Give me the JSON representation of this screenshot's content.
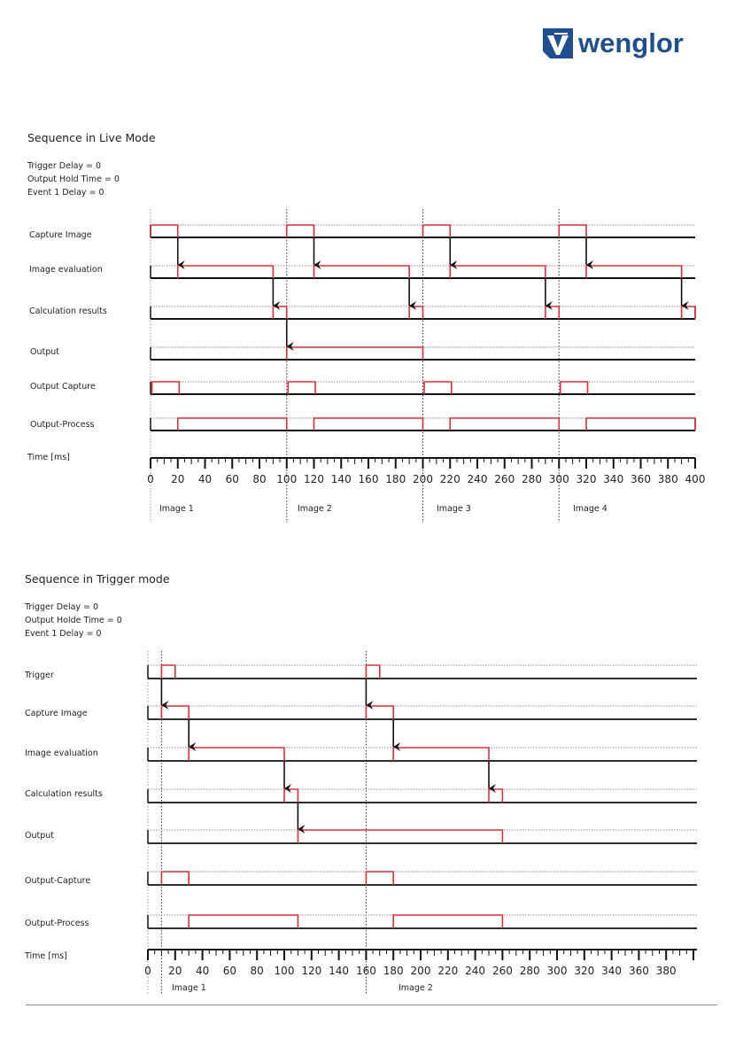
{
  "header": {
    "brand": "wenglor",
    "logo_icon": "wenglor-logo-icon",
    "brand_color": "#1f4f8f"
  },
  "colors": {
    "signal_high": "#d9303a",
    "signal_low": "#111111",
    "arrow": "#111111",
    "grid": "#888888"
  },
  "live_mode": {
    "title": "Sequence in Live Mode",
    "params": [
      "Trigger Delay = 0",
      "Output Hold Time = 0",
      "Event 1 Delay = 0"
    ],
    "time_label": "Time [ms]",
    "axis": {
      "min": 0,
      "max": 400,
      "major_step": 20,
      "minor_step": 5,
      "labels": [
        "0",
        "20",
        "40",
        "60",
        "80",
        "100",
        "120",
        "140",
        "160",
        "180",
        "200",
        "220",
        "240",
        "260",
        "280",
        "300",
        "320",
        "340",
        "360",
        "380",
        "400"
      ]
    },
    "markers": [
      0,
      100,
      200,
      300
    ],
    "image_labels": [
      {
        "label": "Image 1",
        "t": 0
      },
      {
        "label": "Image 2",
        "t": 100
      },
      {
        "label": "Image 3",
        "t": 200
      },
      {
        "label": "Image 4",
        "t": 300
      }
    ],
    "signals": [
      {
        "name": "Capture Image",
        "pulses": [
          [
            0,
            20
          ],
          [
            100,
            120
          ],
          [
            200,
            220
          ],
          [
            300,
            320
          ]
        ]
      },
      {
        "name": "Image evaluation",
        "pulses": [
          [
            20,
            90
          ],
          [
            120,
            190
          ],
          [
            220,
            290
          ],
          [
            320,
            390
          ]
        ]
      },
      {
        "name": "Calculation results",
        "pulses": [
          [
            90,
            100
          ],
          [
            190,
            200
          ],
          [
            290,
            300
          ],
          [
            390,
            400
          ]
        ]
      },
      {
        "name": "Output",
        "pulses": [
          [
            100,
            200
          ]
        ]
      },
      {
        "name": "Output Capture",
        "pulses": [
          [
            1,
            21
          ],
          [
            101,
            121
          ],
          [
            201,
            221
          ],
          [
            301,
            321
          ]
        ]
      },
      {
        "name": "Output-Process",
        "pulses": [
          [
            20,
            100
          ],
          [
            120,
            200
          ],
          [
            220,
            300
          ],
          [
            320,
            400
          ]
        ]
      }
    ],
    "arrows": [
      {
        "t": 20,
        "from": 0,
        "to": 1
      },
      {
        "t": 120,
        "from": 0,
        "to": 1
      },
      {
        "t": 220,
        "from": 0,
        "to": 1
      },
      {
        "t": 320,
        "from": 0,
        "to": 1
      },
      {
        "t": 90,
        "from": 1,
        "to": 2
      },
      {
        "t": 190,
        "from": 1,
        "to": 2
      },
      {
        "t": 290,
        "from": 1,
        "to": 2
      },
      {
        "t": 390,
        "from": 1,
        "to": 2
      },
      {
        "t": 100,
        "from": 2,
        "to": 3
      }
    ]
  },
  "trigger_mode": {
    "title": "Sequence in Trigger mode",
    "params": [
      "Trigger Delay = 0",
      "Output Holde Time = 0",
      "Event 1 Delay = 0"
    ],
    "time_label": "Time [ms]",
    "axis": {
      "min": 0,
      "max": 400,
      "major_step": 20,
      "minor_step": 5,
      "labels": [
        "0",
        "20",
        "40",
        "60",
        "80",
        "100",
        "120",
        "140",
        "160",
        "180",
        "200",
        "220",
        "240",
        "260",
        "280",
        "300",
        "320",
        "340",
        "360",
        "380"
      ]
    },
    "markers": [
      10,
      160
    ],
    "image_labels": [
      {
        "label": "Image 1",
        "t": 10
      },
      {
        "label": "Image 2",
        "t": 160
      }
    ],
    "signals": [
      {
        "name": "Trigger",
        "pulses": [
          [
            10,
            20
          ],
          [
            160,
            170
          ]
        ]
      },
      {
        "name": "Capture Image",
        "pulses": [
          [
            10,
            30
          ],
          [
            160,
            180
          ]
        ]
      },
      {
        "name": "Image evaluation",
        "pulses": [
          [
            30,
            100
          ],
          [
            180,
            250
          ]
        ]
      },
      {
        "name": "Calculation results",
        "pulses": [
          [
            100,
            110
          ],
          [
            250,
            260
          ]
        ]
      },
      {
        "name": "Output",
        "pulses": [
          [
            110,
            260
          ]
        ]
      },
      {
        "name": "Output-Capture",
        "pulses": [
          [
            10,
            30
          ],
          [
            160,
            180
          ]
        ]
      },
      {
        "name": "Output-Process",
        "pulses": [
          [
            30,
            110
          ],
          [
            180,
            260
          ]
        ]
      }
    ],
    "arrows": [
      {
        "t": 10,
        "from": 0,
        "to": 1
      },
      {
        "t": 160,
        "from": 0,
        "to": 1
      },
      {
        "t": 30,
        "from": 1,
        "to": 2
      },
      {
        "t": 180,
        "from": 1,
        "to": 2
      },
      {
        "t": 100,
        "from": 2,
        "to": 3
      },
      {
        "t": 250,
        "from": 2,
        "to": 3
      },
      {
        "t": 110,
        "from": 3,
        "to": 4
      }
    ]
  }
}
